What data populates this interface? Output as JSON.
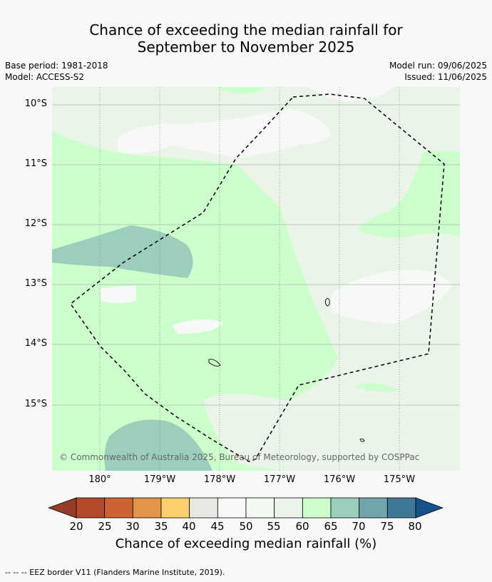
{
  "title_line1": "Chance of exceeding the median rainfall for",
  "title_line2": "September to November 2025",
  "meta_left": {
    "base_period": "Base period: 1981-2018",
    "model": "Model: ACCESS-S2"
  },
  "meta_right": {
    "model_run": "Model run: 09/06/2025",
    "issued": "Issued: 11/06/2025"
  },
  "lat_labels": [
    "10°S",
    "11°S",
    "12°S",
    "13°S",
    "14°S",
    "15°S"
  ],
  "lon_labels": [
    "180°",
    "179°W",
    "178°W",
    "177°W",
    "176°W",
    "175°W"
  ],
  "copyright": "© Commonwealth of Australia 2025, Bureau of Meteorology, supported by COSPPac",
  "colorbar": {
    "labels": [
      "20",
      "25",
      "30",
      "35",
      "40",
      "45",
      "50",
      "55",
      "60",
      "65",
      "70",
      "75",
      "80"
    ],
    "colors": [
      "#973c27",
      "#b34a2a",
      "#cd6333",
      "#e29448",
      "#fcd06c",
      "#e8e8e2",
      "#f6f9f5",
      "#f4f8f3",
      "#eaf4e8",
      "#ccffcc",
      "#9bcfbc",
      "#6ea6ab",
      "#3f7898",
      "#17528b"
    ],
    "title": "Chance of exceeding median rainfall (%)"
  },
  "footnote": "--  --  -- EEZ border V11 (Flanders Marine Institute, 2019)."
}
